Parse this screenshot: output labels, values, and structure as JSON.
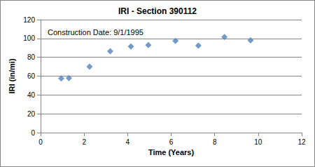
{
  "chart_data": {
    "type": "scatter",
    "title": "IRI - Section 390112",
    "annotation": "Construction Date: 9/1/1995",
    "xlabel": "Time (Years)",
    "ylabel": "IRI (in/mi)",
    "x": [
      0.95,
      1.3,
      2.25,
      3.2,
      4.15,
      4.95,
      6.2,
      7.25,
      8.45,
      9.65
    ],
    "values": [
      57.5,
      58,
      70,
      86.5,
      91.5,
      93,
      97.5,
      92.5,
      101.5,
      98
    ],
    "color": "#4f81bd",
    "marker": "diamond",
    "xlim": [
      0,
      12
    ],
    "xticks": [
      0,
      2,
      4,
      6,
      8,
      10,
      12
    ],
    "ylim": [
      0,
      120
    ],
    "yticks": [
      0,
      20,
      40,
      60,
      80,
      100,
      120
    ],
    "grid": true
  }
}
